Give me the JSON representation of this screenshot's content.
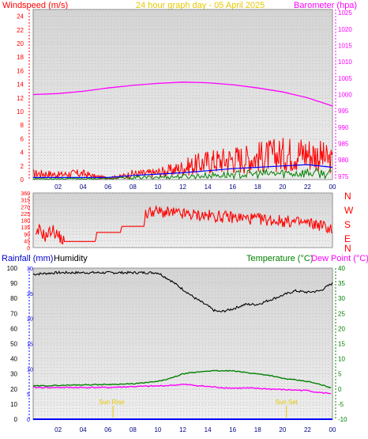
{
  "header": {
    "wind_title": "Windspeed (m/s)",
    "center_title": "24 hour graph day - 05 April 2025",
    "baro_title": "Barometer (hpa)"
  },
  "mid": {
    "compass": [
      "N",
      "W",
      "S",
      "E",
      "N"
    ]
  },
  "lower_header": {
    "rain_title": "Rainfall (mm)",
    "humidity_title": "Humidity",
    "temp_title": "Temperature (°C)",
    "dew_title": "Dew Point (°C)"
  },
  "annotations": {
    "sunrise": "Sun Rise",
    "sunset": "Sun Set"
  },
  "colors": {
    "wind": "#ff0000",
    "gust": "#ff0000",
    "wind_avg": "#0000ff",
    "wind_low": "#008000",
    "barometer": "#ff00ff",
    "direction": "#ff0000",
    "rain_axis": "#0000ff",
    "humidity": "#000000",
    "temperature": "#008000",
    "dewpoint": "#ff00ff",
    "title_center": "#e6c800",
    "plot_bg": "#d8d8d8"
  },
  "chart_data": [
    {
      "type": "line",
      "id": "wind_baro",
      "x_ticks": [
        "02",
        "04",
        "06",
        "08",
        "10",
        "12",
        "14",
        "16",
        "18",
        "20",
        "22",
        "00"
      ],
      "wind_axis": {
        "ticks": [
          0,
          2,
          4,
          6,
          8,
          10,
          12,
          14,
          16,
          18,
          20,
          22,
          24
        ],
        "ylim": [
          0,
          25
        ]
      },
      "baro_axis": {
        "ticks": [
          975,
          980,
          985,
          990,
          995,
          1000,
          1005,
          1010,
          1015,
          1020,
          1025
        ],
        "ylim": [
          974,
          1026
        ]
      },
      "gust_level": [
        [
          0,
          1
        ],
        [
          1,
          1
        ],
        [
          2,
          0.8
        ],
        [
          3,
          1
        ],
        [
          4,
          1
        ],
        [
          5,
          0.5
        ],
        [
          6,
          0.3
        ],
        [
          7,
          0.5
        ],
        [
          8,
          1
        ],
        [
          9,
          1
        ],
        [
          10,
          1.2
        ],
        [
          11,
          1.5
        ],
        [
          12,
          2
        ],
        [
          13,
          2.5
        ],
        [
          14,
          3
        ],
        [
          15,
          3.2
        ],
        [
          16,
          3.5
        ],
        [
          17,
          3.5
        ],
        [
          18,
          3.8
        ],
        [
          19,
          4
        ],
        [
          20,
          4.2
        ],
        [
          21,
          4.5
        ],
        [
          22,
          4.5
        ],
        [
          23,
          4
        ],
        [
          24,
          3
        ]
      ],
      "average": [
        [
          0,
          0.3
        ],
        [
          6,
          0.3
        ],
        [
          8,
          0.6
        ],
        [
          10,
          0.8
        ],
        [
          12,
          1
        ],
        [
          14,
          1.3
        ],
        [
          16,
          1.6
        ],
        [
          18,
          1.8
        ],
        [
          20,
          2
        ],
        [
          22,
          2.2
        ],
        [
          24,
          1.8
        ]
      ],
      "barometer": [
        [
          0,
          1000
        ],
        [
          2,
          1000.3
        ],
        [
          4,
          1001
        ],
        [
          6,
          1002
        ],
        [
          8,
          1002.8
        ],
        [
          10,
          1003.4
        ],
        [
          12,
          1003.8
        ],
        [
          14,
          1003.6
        ],
        [
          16,
          1003
        ],
        [
          18,
          1002
        ],
        [
          20,
          1000.8
        ],
        [
          22,
          999
        ],
        [
          24,
          996.5
        ]
      ]
    },
    {
      "type": "line",
      "id": "direction",
      "y_ticks": [
        0,
        45,
        90,
        135,
        180,
        225,
        270,
        315,
        360
      ],
      "ylim": [
        0,
        360
      ],
      "direction": [
        [
          0.2,
          60
        ],
        [
          0.5,
          120
        ],
        [
          1,
          70
        ],
        [
          1.5,
          120
        ],
        [
          2,
          80
        ],
        [
          2.5,
          40
        ],
        [
          3,
          40
        ],
        [
          5,
          40
        ],
        [
          5.1,
          100
        ],
        [
          7,
          100
        ],
        [
          7.1,
          140
        ],
        [
          8.9,
          140
        ],
        [
          9,
          220
        ],
        [
          9.5,
          240
        ],
        [
          12,
          220
        ],
        [
          16,
          200
        ],
        [
          20,
          175
        ],
        [
          22,
          160
        ],
        [
          23,
          150
        ],
        [
          24,
          120
        ]
      ]
    },
    {
      "type": "line",
      "id": "temp_hum_rain",
      "humidity_axis": {
        "ticks": [
          0,
          10,
          20,
          30,
          40,
          50,
          60,
          70,
          80,
          90,
          100
        ],
        "ylim": [
          0,
          100
        ]
      },
      "rain_axis": {
        "ticks": [
          0,
          5,
          10,
          15,
          20,
          25,
          30
        ],
        "ylim": [
          0,
          30
        ]
      },
      "temperature_axis": {
        "ticks": [
          -10,
          -5,
          0,
          5,
          10,
          15,
          20,
          25,
          30,
          35,
          40
        ],
        "ylim": [
          -10,
          40
        ]
      },
      "humidity": [
        [
          0,
          96
        ],
        [
          2,
          97
        ],
        [
          4,
          97
        ],
        [
          6,
          97
        ],
        [
          8,
          97
        ],
        [
          10,
          97
        ],
        [
          11,
          92
        ],
        [
          12,
          86
        ],
        [
          13,
          80
        ],
        [
          14,
          75
        ],
        [
          14.5,
          72
        ],
        [
          15,
          71
        ],
        [
          16,
          73
        ],
        [
          17,
          76
        ],
        [
          18,
          76
        ],
        [
          19,
          79
        ],
        [
          20,
          82
        ],
        [
          21,
          85
        ],
        [
          22,
          84
        ],
        [
          23,
          85
        ],
        [
          24,
          90
        ]
      ],
      "temperature": [
        [
          0,
          1
        ],
        [
          2,
          1.2
        ],
        [
          4,
          1.4
        ],
        [
          6,
          1.5
        ],
        [
          8,
          1.7
        ],
        [
          10,
          2.5
        ],
        [
          11,
          3.5
        ],
        [
          12,
          5
        ],
        [
          13,
          5.5
        ],
        [
          14,
          6
        ],
        [
          15,
          6
        ],
        [
          16,
          6
        ],
        [
          17,
          5.5
        ],
        [
          18,
          5
        ],
        [
          19,
          4.5
        ],
        [
          20,
          3.5
        ],
        [
          21,
          3
        ],
        [
          22,
          2.5
        ],
        [
          23,
          1.5
        ],
        [
          24,
          0.3
        ]
      ],
      "dewpoint": [
        [
          0,
          0.5
        ],
        [
          2,
          0.5
        ],
        [
          4,
          0.5
        ],
        [
          6,
          0.5
        ],
        [
          8,
          0.8
        ],
        [
          10,
          1
        ],
        [
          11,
          1.2
        ],
        [
          12,
          1.5
        ],
        [
          13,
          1.2
        ],
        [
          14,
          0.8
        ],
        [
          15,
          0.5
        ],
        [
          16,
          0.3
        ],
        [
          17,
          0.3
        ],
        [
          18,
          0.2
        ],
        [
          19,
          0
        ],
        [
          20,
          -0.2
        ],
        [
          22,
          -0.5
        ],
        [
          23,
          -1.2
        ],
        [
          24,
          -1.5
        ]
      ],
      "rainfall": [
        [
          0,
          0
        ],
        [
          24,
          0
        ]
      ],
      "sunrise_hour": 6.4,
      "sunset_hour": 20.3
    }
  ]
}
